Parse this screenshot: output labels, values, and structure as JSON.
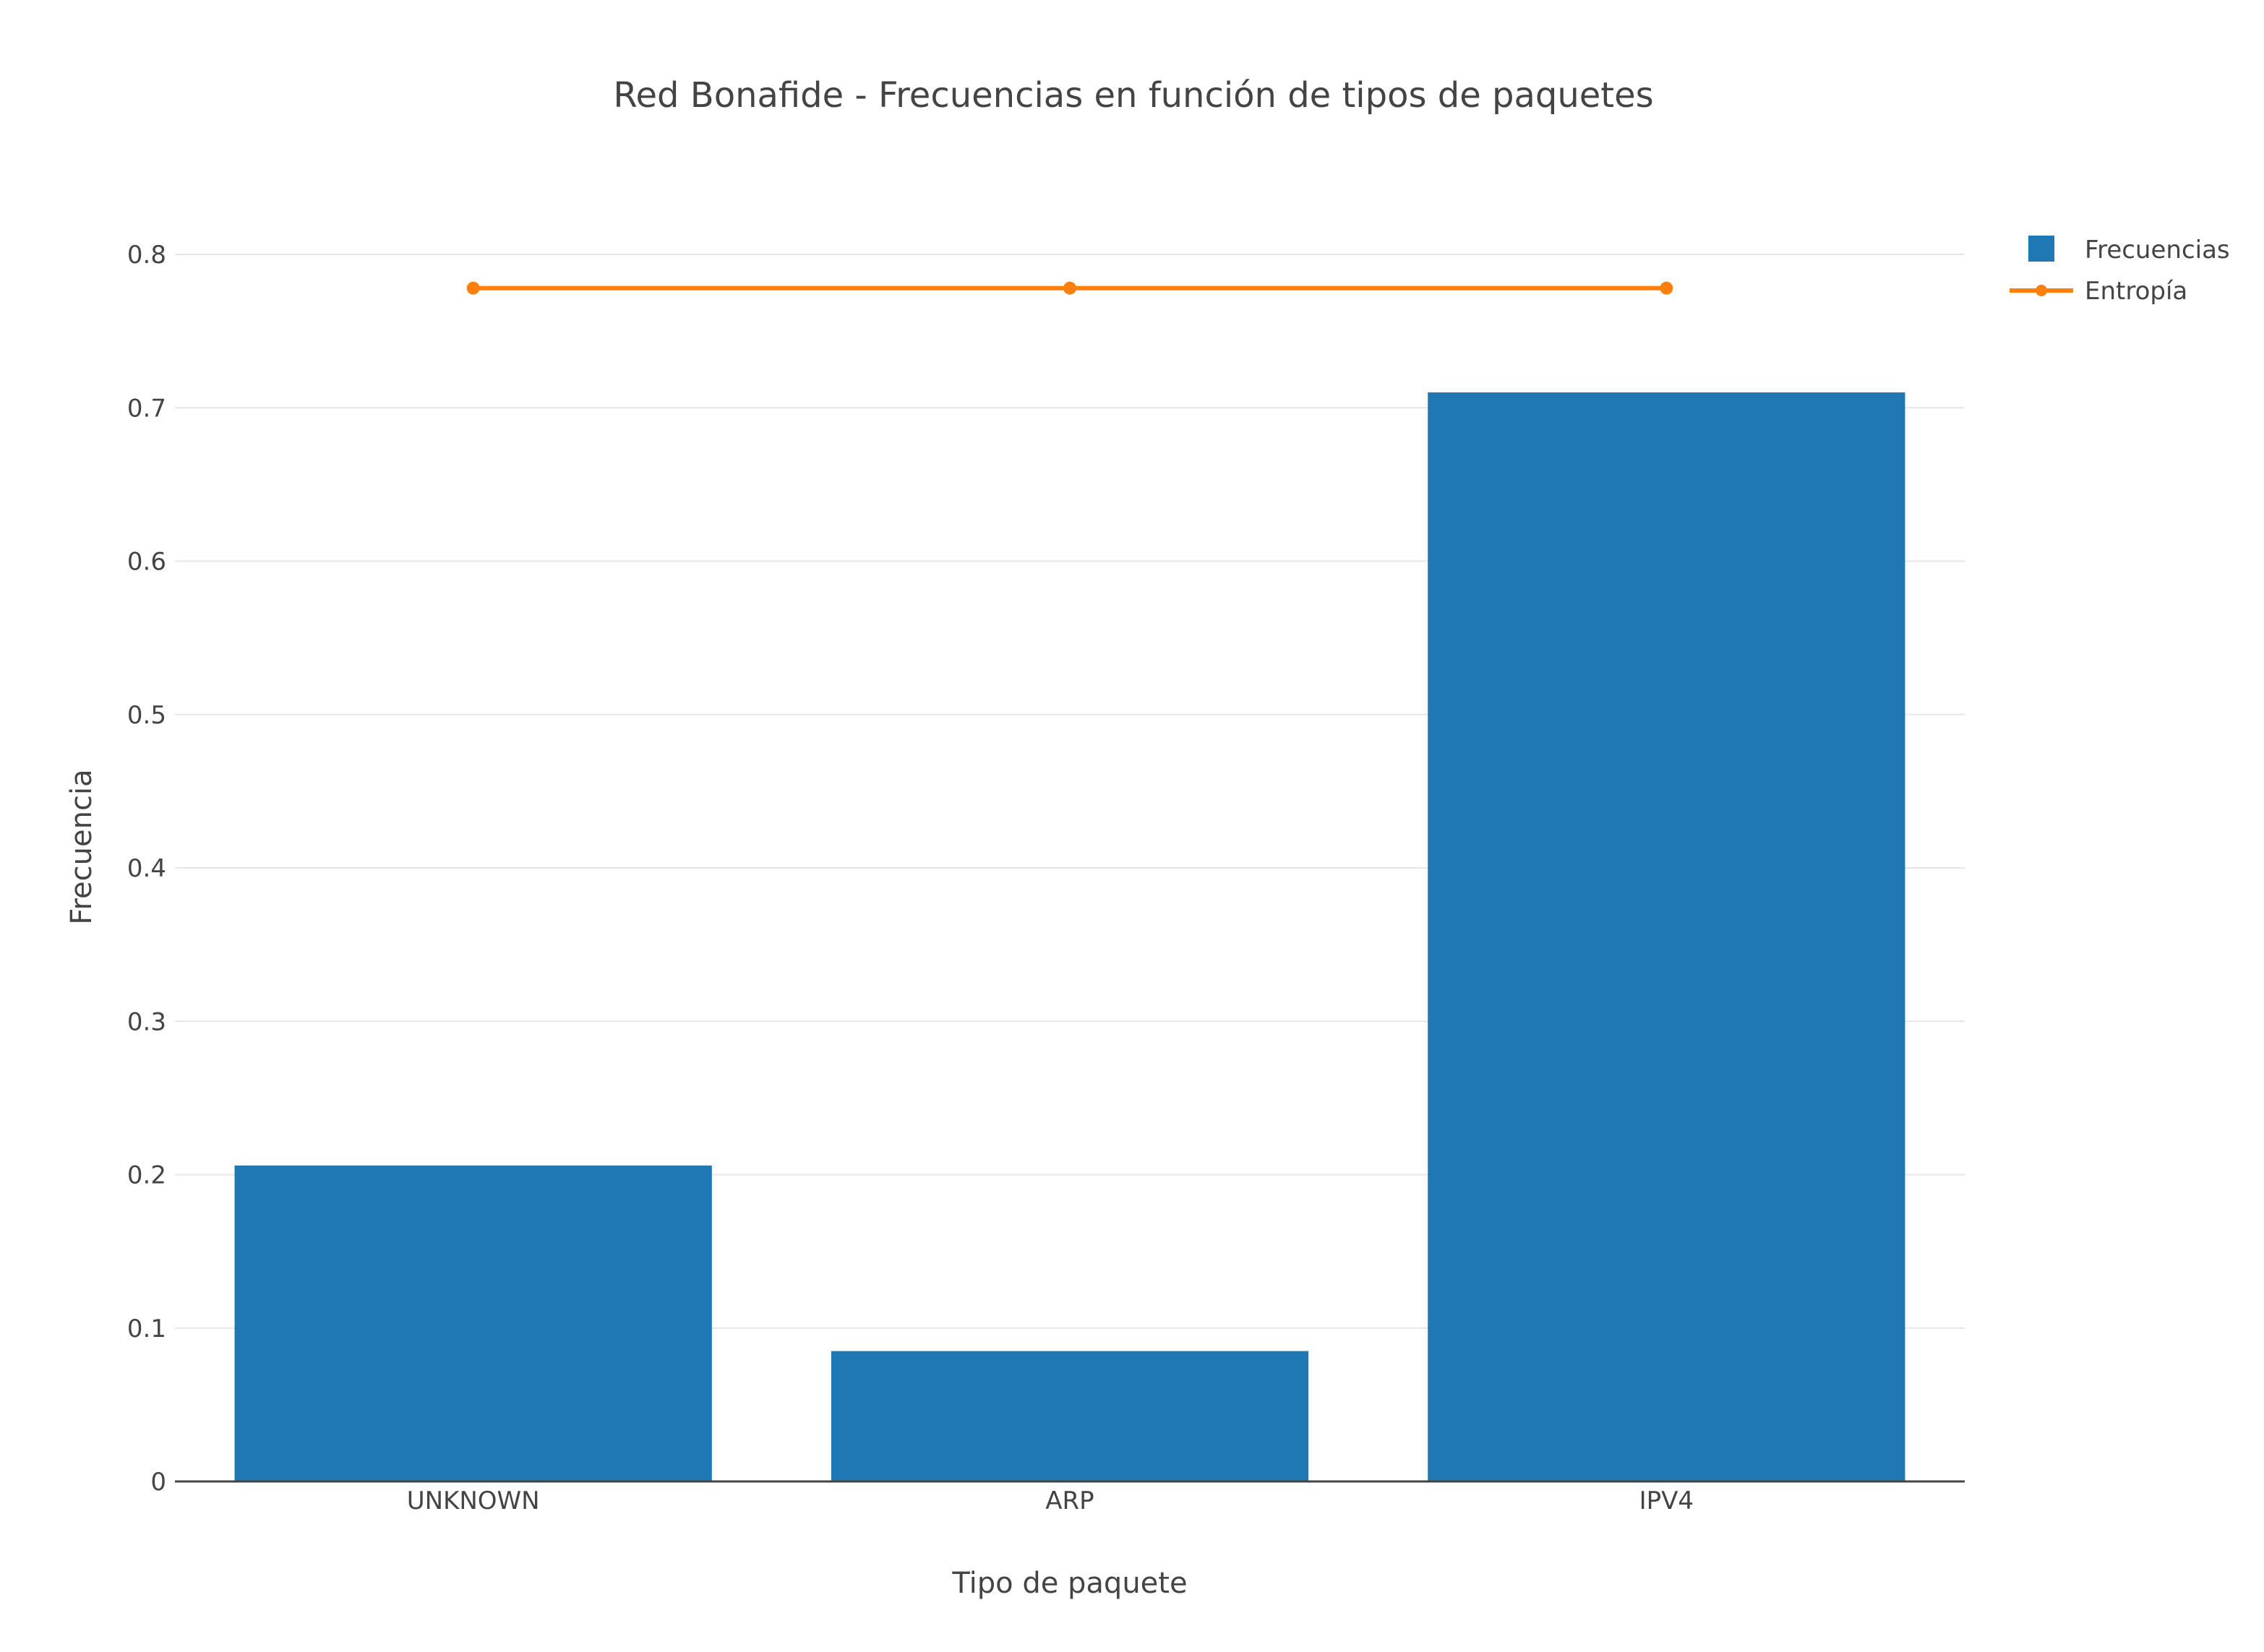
{
  "chart_data": {
    "type": "bar",
    "title": "Red Bonafide - Frecuencias en función de tipos de paquetes",
    "xlabel": "Tipo de paquete",
    "ylabel": "Frecuencia",
    "categories": [
      "UNKNOWN",
      "ARP",
      "IPV4"
    ],
    "ylim": [
      0,
      0.8
    ],
    "yticks": [
      0,
      0.1,
      0.2,
      0.3,
      0.4,
      0.5,
      0.6,
      0.7,
      0.8
    ],
    "ytick_labels": [
      "0",
      "0.1",
      "0.2",
      "0.3",
      "0.4",
      "0.5",
      "0.6",
      "0.7",
      "0.8"
    ],
    "grid": true,
    "legend_position": "top-right",
    "series": [
      {
        "name": "Frecuencias",
        "type": "bar",
        "color": "#1f77b4",
        "values": [
          0.206,
          0.085,
          0.71
        ]
      },
      {
        "name": "Entropía",
        "type": "line",
        "color": "#ff7f0e",
        "values": [
          0.778,
          0.778,
          0.778
        ]
      }
    ]
  }
}
